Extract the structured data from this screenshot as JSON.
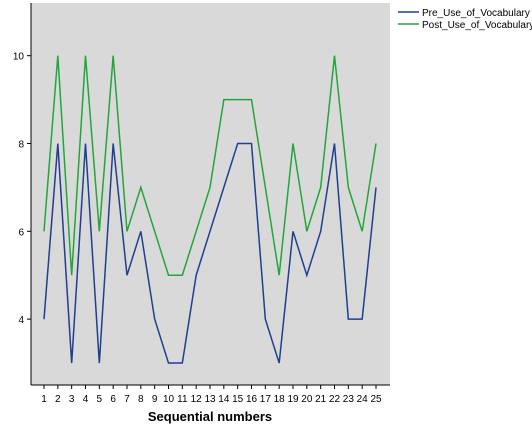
{
  "chart_data": {
    "type": "line",
    "xlabel": "Sequential numbers",
    "ylabel": "",
    "ylim": [
      2.5,
      11.2
    ],
    "y_ticks": [
      4,
      6,
      8,
      10
    ],
    "x": [
      1,
      2,
      3,
      4,
      5,
      6,
      7,
      8,
      9,
      10,
      11,
      12,
      13,
      14,
      15,
      16,
      17,
      18,
      19,
      20,
      21,
      22,
      23,
      24,
      25
    ],
    "legend_position": "top-right",
    "plot_background": "#d9d9d9",
    "series": [
      {
        "name": "Pre_Use_of_Vocabulary",
        "color": "#1f3f8f",
        "values": [
          4,
          8,
          3,
          8,
          3,
          8,
          5,
          6,
          4,
          3,
          3,
          5,
          6,
          7,
          8,
          8,
          4,
          3,
          6,
          5,
          6,
          8,
          4,
          4,
          7
        ]
      },
      {
        "name": "Post_Use_of_Vocabulary",
        "color": "#22a63b",
        "values": [
          6,
          10,
          5,
          10,
          6,
          10,
          6,
          7,
          6,
          5,
          5,
          6,
          7,
          9,
          9,
          9,
          7,
          5,
          8,
          6,
          7,
          10,
          7,
          6,
          8
        ]
      }
    ]
  }
}
